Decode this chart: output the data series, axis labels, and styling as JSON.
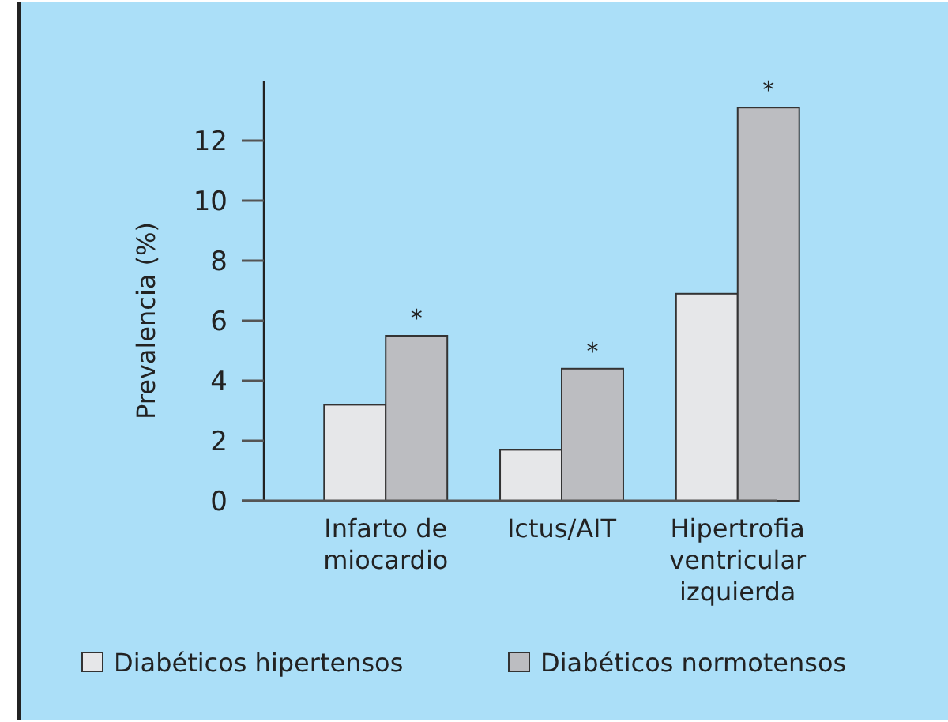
{
  "chart_data": {
    "type": "bar",
    "ylabel": "Prevalencia (%)",
    "categories": [
      "Infarto de\nmiocardio",
      "Ictus/AIT",
      "Hipertrofia\nventricular\nizquierda"
    ],
    "series": [
      {
        "name": "Diabéticos hipertensos",
        "color": "#e6e7e9",
        "values": [
          3.2,
          1.7,
          6.9
        ]
      },
      {
        "name": "Diabéticos normotensos",
        "color": "#bcbdc1",
        "values": [
          5.5,
          4.4,
          13.1
        ]
      }
    ],
    "ylim": [
      0,
      14
    ],
    "yticks": [
      0,
      2,
      4,
      6,
      8,
      10,
      12
    ],
    "grid": false,
    "legend": "bottom",
    "annotations": [
      {
        "text": "*",
        "x": "Infarto de\nmiocardio",
        "y": 5.5
      },
      {
        "text": "*",
        "x": "Ictus/AIT",
        "y": 4.4
      },
      {
        "text": "*",
        "x": "Hipertrofia\nventricular\nizquierda",
        "y": 13.1
      }
    ]
  }
}
